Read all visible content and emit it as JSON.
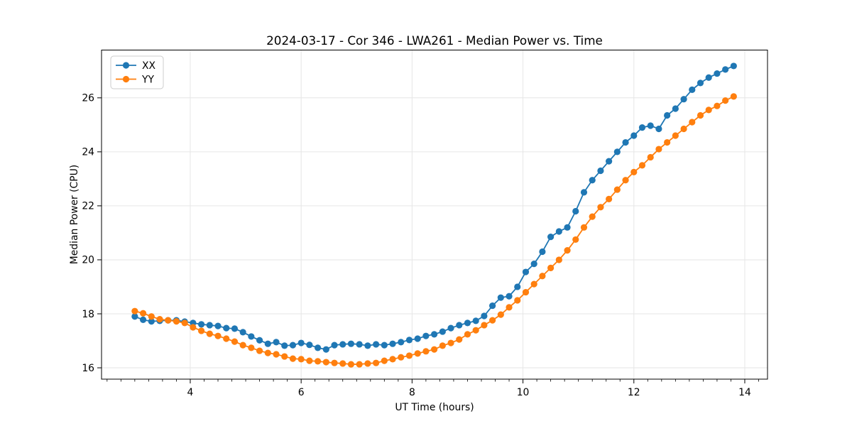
{
  "chart_data": {
    "type": "line",
    "title": "2024-03-17 - Cor 346 - LWA261 - Median Power vs. Time",
    "xlabel": "UT Time (hours)",
    "ylabel": "Median Power (CPU)",
    "xlim": [
      2.4,
      14.41
    ],
    "ylim": [
      15.58,
      27.77
    ],
    "xticks": [
      4,
      6,
      8,
      10,
      12,
      14
    ],
    "yticks": [
      16,
      18,
      20,
      22,
      24,
      26
    ],
    "x_minor_step": 0.25,
    "grid": true,
    "grid_color": "#e6e6e6",
    "spine_color": "#000000",
    "legend_position": "upper left",
    "legend_border_color": "#cccccc",
    "x": [
      3.0,
      3.15,
      3.3,
      3.45,
      3.6,
      3.75,
      3.9,
      4.05,
      4.2,
      4.35,
      4.5,
      4.65,
      4.8,
      4.95,
      5.1,
      5.25,
      5.4,
      5.55,
      5.7,
      5.85,
      6.0,
      6.15,
      6.3,
      6.45,
      6.6,
      6.75,
      6.9,
      7.05,
      7.2,
      7.35,
      7.5,
      7.65,
      7.8,
      7.95,
      8.1,
      8.25,
      8.4,
      8.55,
      8.7,
      8.85,
      9.0,
      9.15,
      9.3,
      9.45,
      9.6,
      9.75,
      9.9,
      10.05,
      10.2,
      10.35,
      10.5,
      10.65,
      10.8,
      10.95,
      11.1,
      11.25,
      11.4,
      11.55,
      11.7,
      11.85,
      12.0,
      12.15,
      12.3,
      12.45,
      12.6,
      12.75,
      12.9,
      13.05,
      13.2,
      13.35,
      13.5,
      13.65,
      13.8
    ],
    "series": [
      {
        "name": "XX",
        "color": "#1f77b4",
        "values": [
          17.9,
          17.78,
          17.72,
          17.74,
          17.76,
          17.76,
          17.71,
          17.66,
          17.61,
          17.58,
          17.55,
          17.47,
          17.45,
          17.32,
          17.16,
          17.02,
          16.89,
          16.95,
          16.82,
          16.84,
          16.92,
          16.85,
          16.74,
          16.68,
          16.84,
          16.87,
          16.89,
          16.87,
          16.82,
          16.87,
          16.84,
          16.89,
          16.95,
          17.03,
          17.08,
          17.18,
          17.24,
          17.34,
          17.47,
          17.58,
          17.66,
          17.74,
          17.92,
          18.3,
          18.6,
          18.65,
          19.0,
          19.55,
          19.85,
          20.3,
          20.85,
          21.05,
          21.2,
          21.8,
          22.5,
          22.95,
          23.3,
          23.65,
          24.0,
          24.35,
          24.6,
          24.9,
          24.97,
          24.85,
          25.35,
          25.6,
          25.95,
          26.3,
          26.55,
          26.75,
          26.9,
          27.05,
          27.18
        ]
      },
      {
        "name": "YY",
        "color": "#ff7f0e",
        "values": [
          18.1,
          18.02,
          17.9,
          17.8,
          17.76,
          17.72,
          17.66,
          17.5,
          17.37,
          17.26,
          17.18,
          17.08,
          16.97,
          16.84,
          16.74,
          16.63,
          16.55,
          16.5,
          16.42,
          16.34,
          16.32,
          16.26,
          16.24,
          16.21,
          16.18,
          16.16,
          16.13,
          16.13,
          16.16,
          16.18,
          16.26,
          16.32,
          16.39,
          16.45,
          16.53,
          16.61,
          16.68,
          16.82,
          16.92,
          17.05,
          17.24,
          17.39,
          17.58,
          17.76,
          17.97,
          18.24,
          18.5,
          18.8,
          19.1,
          19.4,
          19.7,
          20.0,
          20.35,
          20.75,
          21.2,
          21.6,
          21.95,
          22.25,
          22.6,
          22.95,
          23.25,
          23.5,
          23.8,
          24.1,
          24.35,
          24.6,
          24.85,
          25.1,
          25.35,
          25.55,
          25.7,
          25.9,
          26.05
        ]
      }
    ]
  }
}
